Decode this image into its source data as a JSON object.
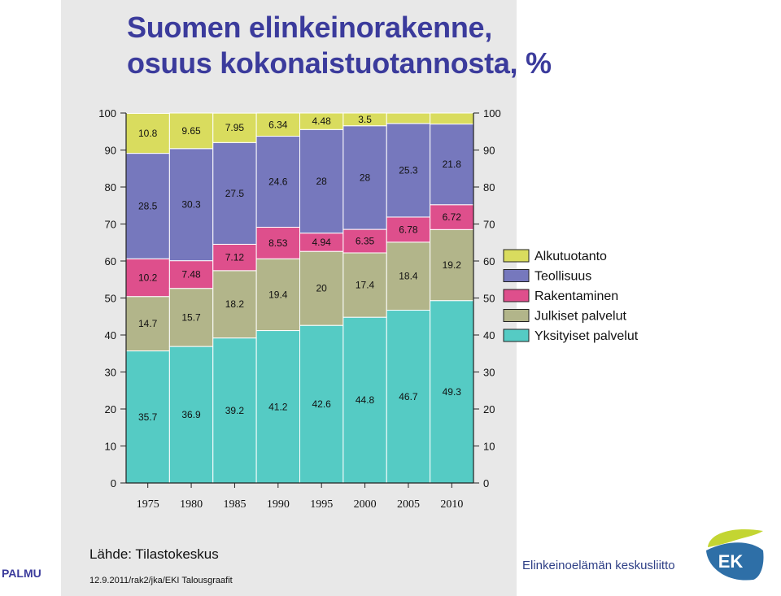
{
  "title_line1": "Suomen elinkeinorakenne,",
  "title_line2": "osuus kokonaistuotannosta, %",
  "source": "Lähde: Tilastokeskus",
  "footnote": "12.9.2011/rak2/jka/EKI Talousgraafit",
  "left_logo_text": "PALMU",
  "org_name": "Elinkeinoelämän keskusliitto",
  "logo_text": "EK",
  "colors": {
    "title": "#3b3b9c",
    "Alkutuotanto": "#d9dc5e",
    "Teollisuus": "#7678bd",
    "Rakentaminen": "#de4f8c",
    "Julkiset palvelut": "#b2b58a",
    "Yksityiset palvelut": "#55cbc4"
  },
  "chart_data": {
    "type": "bar",
    "stacked": true,
    "categories": [
      "1975",
      "1980",
      "1985",
      "1990",
      "1995",
      "2000",
      "2005",
      "2010"
    ],
    "ylim": [
      0,
      100
    ],
    "yticks": [
      0,
      10,
      20,
      30,
      40,
      50,
      60,
      70,
      80,
      90,
      100
    ],
    "legend_position": "right",
    "series": [
      {
        "name": "Yksityiset palvelut",
        "values": [
          35.7,
          36.9,
          39.2,
          41.2,
          42.6,
          44.8,
          46.7,
          49.3
        ],
        "labels": [
          "35.7",
          "36.9",
          "39.2",
          "41.2",
          "42.6",
          "44.8",
          "46.7",
          "49.3"
        ]
      },
      {
        "name": "Julkiset palvelut",
        "values": [
          14.7,
          15.7,
          18.2,
          19.4,
          20,
          17.4,
          18.4,
          19.2
        ],
        "labels": [
          "14.7",
          "15.7",
          "18.2",
          "19.4",
          "20",
          "17.4",
          "18.4",
          "19.2"
        ]
      },
      {
        "name": "Rakentaminen",
        "values": [
          10.2,
          7.48,
          7.12,
          8.53,
          4.94,
          6.35,
          6.78,
          6.72
        ],
        "labels": [
          "10.2",
          "7.48",
          "7.12",
          "8.53",
          "4.94",
          "6.35",
          "6.78",
          "6.72"
        ]
      },
      {
        "name": "Teollisuus",
        "values": [
          28.5,
          30.3,
          27.5,
          24.6,
          28,
          28,
          25.3,
          21.8
        ],
        "labels": [
          "28.5",
          "30.3",
          "27.5",
          "24.6",
          "28",
          "28",
          "25.3",
          "21.8"
        ]
      },
      {
        "name": "Alkutuotanto",
        "values": [
          10.8,
          9.65,
          7.95,
          6.34,
          4.48,
          3.5,
          2.8,
          3.0
        ],
        "labels": [
          "10.8",
          "9.65",
          "7.95",
          "6.34",
          "4.48",
          "3.5",
          "",
          ""
        ]
      }
    ],
    "legend_order": [
      "Alkutuotanto",
      "Teollisuus",
      "Rakentaminen",
      "Julkiset palvelut",
      "Yksityiset palvelut"
    ]
  }
}
